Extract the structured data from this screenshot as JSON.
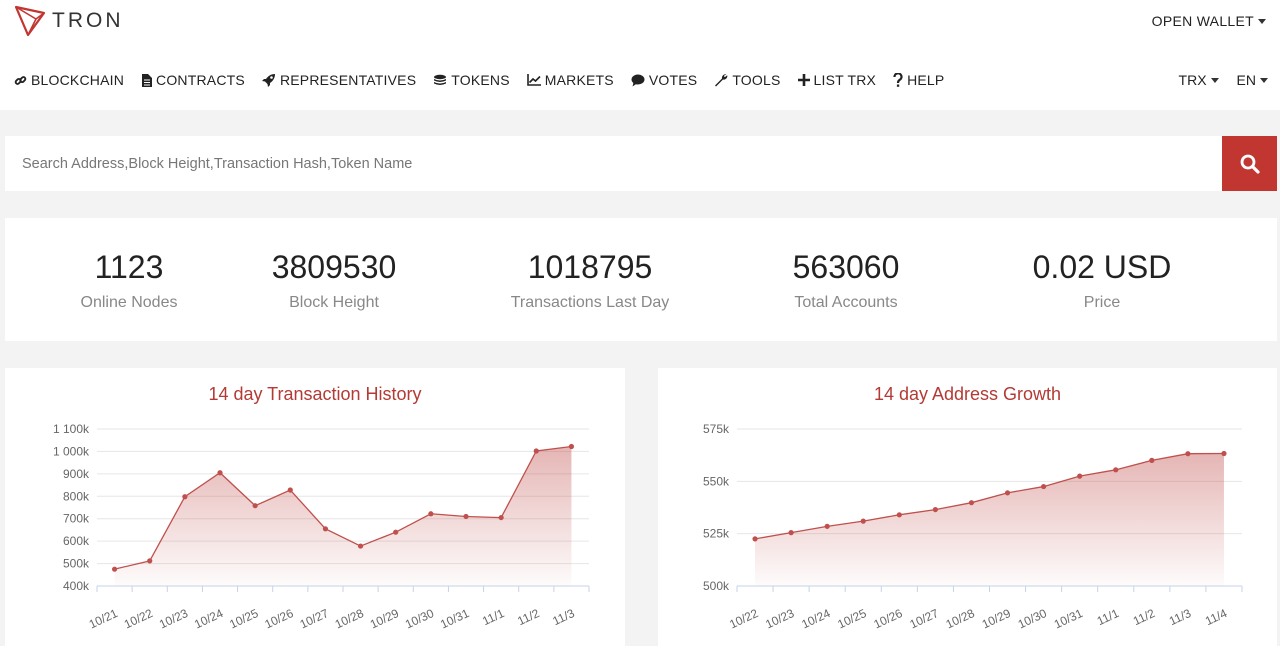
{
  "brand": {
    "name": "TRON"
  },
  "header": {
    "open_wallet": "OPEN WALLET"
  },
  "nav": {
    "items": [
      {
        "label": "BLOCKCHAIN",
        "icon": "link-icon"
      },
      {
        "label": "CONTRACTS",
        "icon": "file-icon"
      },
      {
        "label": "REPRESENTATIVES",
        "icon": "rocket-icon"
      },
      {
        "label": "TOKENS",
        "icon": "coins-icon"
      },
      {
        "label": "MARKETS",
        "icon": "line-chart-icon"
      },
      {
        "label": "VOTES",
        "icon": "comment-icon"
      },
      {
        "label": "TOOLS",
        "icon": "wrench-icon"
      },
      {
        "label": "LIST TRX",
        "icon": "plus-icon"
      },
      {
        "label": "HELP",
        "icon": "question-icon"
      }
    ],
    "currency": "TRX",
    "language": "EN"
  },
  "search": {
    "placeholder": "Search Address,Block Height,Transaction Hash,Token Name",
    "value": ""
  },
  "stats": [
    {
      "value": "1123",
      "label": "Online Nodes"
    },
    {
      "value": "3809530",
      "label": "Block Height"
    },
    {
      "value": "1018795",
      "label": "Transactions Last Day"
    },
    {
      "value": "563060",
      "label": "Total Accounts"
    },
    {
      "value": "0.02 USD",
      "label": "Price"
    }
  ],
  "colors": {
    "accent": "#c23631",
    "title": "#b33a35",
    "line": "#c0504d"
  },
  "chart_data": [
    {
      "type": "area",
      "title": "14 day Transaction History",
      "categories": [
        "10/21",
        "10/22",
        "10/23",
        "10/24",
        "10/25",
        "10/26",
        "10/27",
        "10/28",
        "10/29",
        "10/30",
        "10/31",
        "11/1",
        "11/2",
        "11/3"
      ],
      "values": [
        475000,
        512000,
        798000,
        905000,
        758000,
        828000,
        655000,
        578000,
        640000,
        722000,
        710000,
        705000,
        1002000,
        1022000
      ],
      "y_ticks": [
        400000,
        500000,
        600000,
        700000,
        800000,
        900000,
        1000000,
        1100000
      ],
      "y_tick_labels": [
        "400k",
        "500k",
        "600k",
        "700k",
        "800k",
        "900k",
        "1 000k",
        "1 100k"
      ],
      "ylim": [
        400000,
        1100000
      ],
      "grid": true
    },
    {
      "type": "area",
      "title": "14 day Address Growth",
      "categories": [
        "10/22",
        "10/23",
        "10/24",
        "10/25",
        "10/26",
        "10/27",
        "10/28",
        "10/29",
        "10/30",
        "10/31",
        "11/1",
        "11/2",
        "11/3",
        "11/4"
      ],
      "values": [
        522500,
        525500,
        528500,
        531000,
        534000,
        536500,
        539800,
        544500,
        547500,
        552500,
        555500,
        560000,
        563200,
        563300
      ],
      "y_ticks": [
        500000,
        525000,
        550000,
        575000
      ],
      "y_tick_labels": [
        "500k",
        "525k",
        "550k",
        "575k"
      ],
      "ylim": [
        500000,
        575000
      ],
      "grid": true
    }
  ]
}
